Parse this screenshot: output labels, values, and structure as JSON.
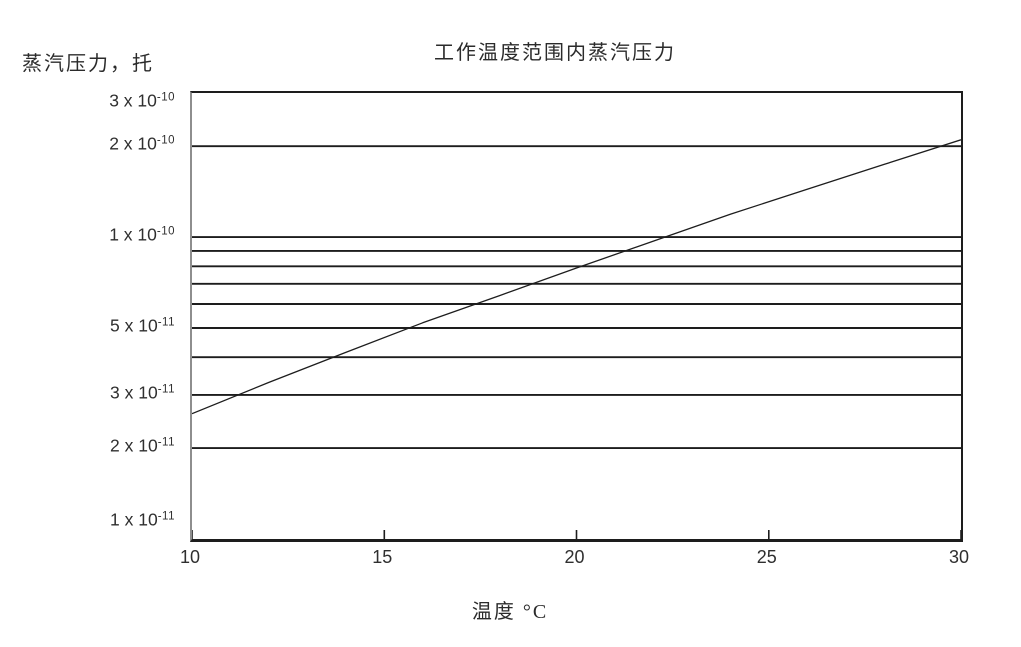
{
  "chart": {
    "title": "工作温度范围内蒸汽压力",
    "y_axis_title": "蒸汽压力，托",
    "x_axis_title": "温度 °C"
  },
  "chart_data": {
    "type": "line",
    "title": "工作温度范围内蒸汽压力",
    "xlabel": "温度 °C",
    "ylabel": "蒸汽压力，托",
    "y_unit": "托 (Torr)",
    "x_unit": "°C",
    "xlim": [
      10,
      30
    ],
    "ylim": [
      1e-11,
      3e-10
    ],
    "y_scale": "log",
    "legend": "none",
    "grid": "horizontal-log-gridlines",
    "x": [
      10,
      12,
      14,
      16,
      18,
      20,
      22,
      24,
      26,
      28,
      30
    ],
    "y": [
      2.6e-11,
      3.3e-11,
      4.15e-11,
      5.2e-11,
      6.4e-11,
      7.9e-11,
      9.7e-11,
      1.19e-10,
      1.44e-10,
      1.74e-10,
      2.1e-10
    ],
    "x_ticks": [
      10,
      15,
      20,
      25,
      30
    ],
    "x_tick_labels": [
      "10",
      "15",
      "20",
      "25",
      "30"
    ],
    "gridline_values": [
      2e-11,
      3e-11,
      4e-11,
      5e-11,
      6e-11,
      7e-11,
      8e-11,
      9e-11,
      1e-10,
      2e-10
    ],
    "y_tick_labels": [
      {
        "mantissa": "3 x 10",
        "exp": "-10",
        "value": 3e-10
      },
      {
        "mantissa": "2 x 10",
        "exp": "-10",
        "value": 2e-10
      },
      {
        "mantissa": "1 x 10",
        "exp": "-10",
        "value": 1e-10
      },
      {
        "mantissa": "5 x 10",
        "exp": "-11",
        "value": 5e-11
      },
      {
        "mantissa": "3 x 10",
        "exp": "-11",
        "value": 3e-11
      },
      {
        "mantissa": "2 x 10",
        "exp": "-11",
        "value": 2e-11
      },
      {
        "mantissa": "1 x 10",
        "exp": "-11",
        "value": 1e-11
      }
    ]
  },
  "colors": {
    "curve": "#1d1d1d",
    "grid": "#1d1d1d",
    "tick": "#1d1d1d",
    "text": "#2b2b2b",
    "background": "#ffffff",
    "left_axis": "#8e8e8e"
  }
}
